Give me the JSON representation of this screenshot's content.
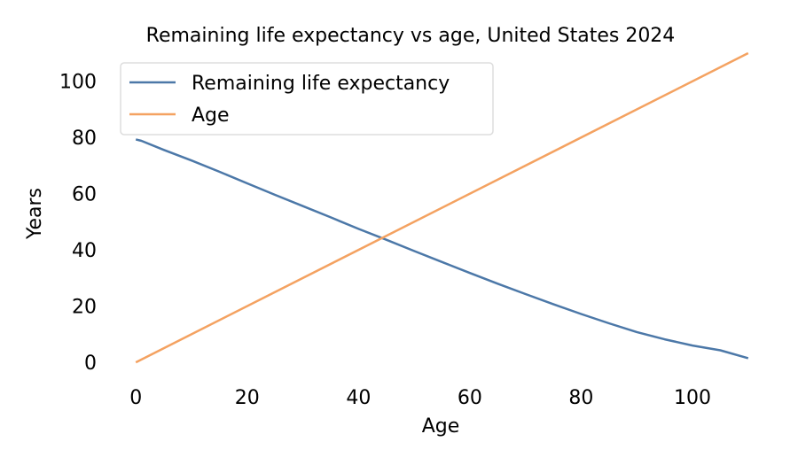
{
  "chart_data": {
    "type": "line",
    "title": "Remaining life expectancy vs age, United States 2024",
    "xlabel": "Age",
    "ylabel": "Years",
    "xlim": [
      -4.5,
      114.5
    ],
    "ylim": [
      -5,
      110
    ],
    "xticks": [
      0,
      20,
      40,
      60,
      80,
      100
    ],
    "yticks": [
      0,
      20,
      40,
      60,
      80,
      100
    ],
    "grid": false,
    "legend_position": "top-left",
    "series": [
      {
        "name": "Remaining life expectancy",
        "color": "#4c78a8",
        "x": [
          0,
          1,
          5,
          10,
          15,
          20,
          25,
          30,
          35,
          40,
          45,
          50,
          55,
          60,
          65,
          70,
          75,
          80,
          85,
          90,
          95,
          100,
          105,
          110
        ],
        "y": [
          79.3,
          78.8,
          75.6,
          71.8,
          67.8,
          63.7,
          59.6,
          55.6,
          51.6,
          47.5,
          43.6,
          39.6,
          35.7,
          31.8,
          28.0,
          24.3,
          20.7,
          17.2,
          13.9,
          10.8,
          8.2,
          6.0,
          4.3,
          1.5
        ]
      },
      {
        "name": "Age",
        "color": "#f4a261",
        "x": [
          0,
          110
        ],
        "y": [
          0,
          110
        ]
      }
    ]
  }
}
